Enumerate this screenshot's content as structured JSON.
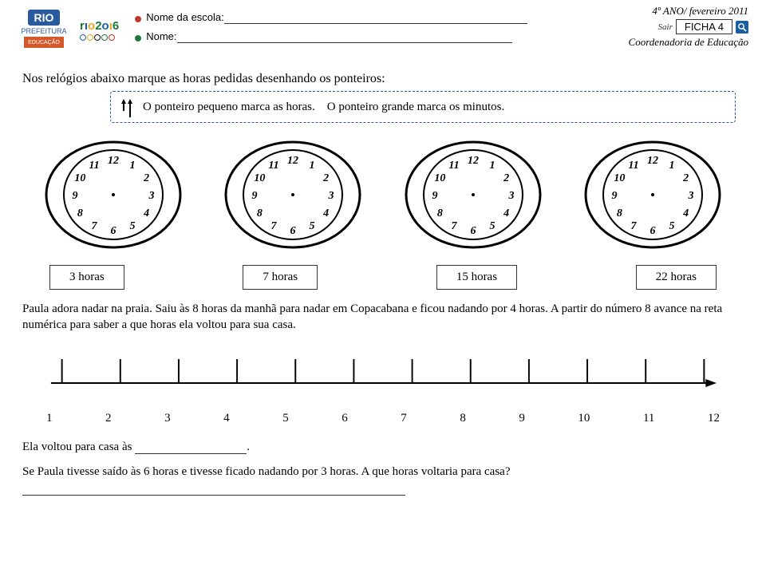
{
  "header": {
    "logo_rio": "RIO",
    "logo_pref": "PREFEITURA",
    "logo_educ": "EDUCAÇÃO",
    "rio2016": "rıo2oı6",
    "school_label": "Nome da escola:",
    "name_label": "Nome:",
    "year": "4º ANO/ fevereiro 2011",
    "sair": "Sair",
    "ficha": "FICHA  4",
    "coord": "Coordenadoria de Educação",
    "bullet_colors": [
      "#c0392b",
      "#1a7a3a"
    ],
    "ring_colors": [
      "#1d5e9e",
      "#e6a817",
      "#111111",
      "#1a7a3a",
      "#c0392b"
    ]
  },
  "main": {
    "instruction": "Nos relógios abaixo marque as horas pedidas desenhando os ponteiros:",
    "tip_small": "O  ponteiro pequeno  marca  as  horas.",
    "tip_big": "O  ponteiro  grande  marca  os  minutos.",
    "clocks": [
      {
        "label": "3 horas"
      },
      {
        "label": "7 horas"
      },
      {
        "label": "15 horas"
      },
      {
        "label": "22  horas"
      }
    ],
    "clock_numbers": [
      "12",
      "1",
      "2",
      "3",
      "4",
      "5",
      "6",
      "7",
      "8",
      "9",
      "10",
      "11"
    ],
    "paragraph": "Paula adora nadar na praia.  Saiu às 8 horas da manhã para nadar em Copacabana e ficou nadando por 4 horas. A partir do número 8 avance na reta numérica para saber a que horas ela voltou para sua casa.",
    "numline_values": [
      "1",
      "2",
      "3",
      "4",
      "5",
      "6",
      "7",
      "8",
      "9",
      "10",
      "11",
      "12"
    ],
    "answer1_label": "Ela voltou para casa às ",
    "q2": "Se Paula  tivesse saído às 6 horas e tivesse ficado nadando por 3 horas. A que horas  voltaria para casa?"
  },
  "style": {
    "dash_color": "#2a5a9e",
    "clock_outer_stroke": "#000000",
    "clock_inner_fill": "#ffffff",
    "numline_stroke": "#000000"
  }
}
